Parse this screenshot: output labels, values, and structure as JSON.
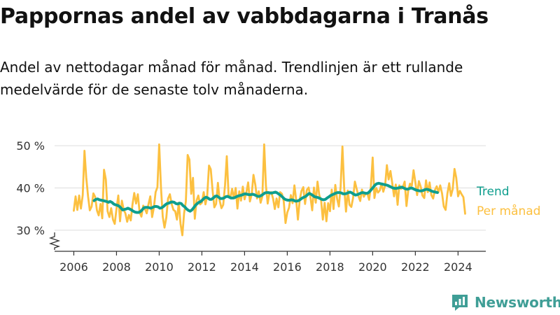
{
  "header": {
    "title": "Pappornas andel av vabbdagarna i Tranås",
    "subtitle": "Andel av nettodagar månad för månad. Trendlinjen är ett rullande medelvärde för de senaste tolv månaderna."
  },
  "brand": {
    "name": "Newsworthy",
    "icon": "newsworthy-logo-icon",
    "color": "#3f9e96"
  },
  "chart_data": {
    "type": "line",
    "x_ticks": [
      2006,
      2008,
      2010,
      2012,
      2014,
      2016,
      2018,
      2020,
      2022,
      2024
    ],
    "y_ticks": [
      30,
      40,
      50
    ],
    "y_tick_labels": [
      "30 %",
      "40 %",
      "50 %"
    ],
    "ylim": [
      25,
      53
    ],
    "xlim": [
      2005.1,
      2025.3
    ],
    "axis_break": true,
    "grid": "horizontal",
    "legend_placement": "right-of-line-ends",
    "monthly_start": 2006.0,
    "series": [
      {
        "name": "Trend",
        "color": "#0f9e8e",
        "start": 2006.95,
        "values": [
          37.0,
          37.3,
          37.4,
          37.2,
          37.1,
          37.0,
          36.9,
          36.8,
          36.6,
          36.8,
          36.6,
          36.2,
          36.0,
          35.9,
          35.7,
          35.3,
          34.8,
          34.9,
          35.0,
          35.2,
          35.0,
          34.8,
          34.5,
          34.3,
          34.2,
          34.2,
          34.4,
          34.8,
          35.3,
          35.4,
          35.4,
          35.3,
          35.2,
          35.4,
          35.6,
          35.6,
          35.5,
          35.2,
          35.3,
          35.6,
          36.0,
          36.3,
          36.4,
          36.6,
          36.7,
          36.6,
          36.3,
          36.2,
          36.4,
          36.3,
          35.8,
          35.5,
          35.0,
          34.7,
          34.5,
          34.8,
          35.3,
          35.9,
          36.3,
          36.6,
          36.8,
          37.2,
          37.6,
          37.8,
          37.6,
          37.3,
          37.3,
          37.6,
          38.0,
          38.1,
          37.8,
          37.5,
          37.5,
          37.6,
          37.9,
          38.0,
          37.8,
          37.6,
          37.6,
          37.7,
          37.9,
          38.1,
          38.2,
          38.3,
          38.5,
          38.6,
          38.5,
          38.4,
          38.4,
          38.5,
          38.4,
          38.2,
          38.0,
          38.0,
          38.2,
          38.5,
          38.8,
          38.9,
          38.9,
          38.8,
          38.8,
          38.9,
          39.0,
          38.8,
          38.5,
          38.2,
          37.8,
          37.4,
          37.2,
          37.1,
          37.1,
          37.2,
          37.1,
          36.9,
          36.9,
          37.0,
          37.3,
          37.6,
          37.8,
          38.0,
          38.4,
          38.7,
          38.5,
          38.2,
          37.9,
          37.8,
          37.7,
          37.5,
          37.3,
          37.2,
          37.3,
          37.6,
          37.9,
          38.2,
          38.4,
          38.6,
          38.8,
          38.9,
          38.9,
          38.8,
          38.6,
          38.6,
          38.7,
          38.9,
          39.0,
          38.8,
          38.5,
          38.3,
          38.4,
          38.6,
          38.8,
          38.9,
          38.8,
          38.7,
          38.8,
          39.2,
          39.7,
          40.2,
          40.7,
          41.0,
          41.1,
          41.0,
          40.9,
          40.8,
          40.7,
          40.6,
          40.4,
          40.2,
          40.0,
          39.9,
          39.9,
          40.0,
          40.1,
          40.2,
          40.0,
          39.8,
          39.7,
          39.8,
          40.0,
          39.9,
          39.7,
          39.5,
          39.4,
          39.3,
          39.3,
          39.4,
          39.6,
          39.7,
          39.6,
          39.4,
          39.2,
          39.1,
          39.0,
          38.9
        ]
      },
      {
        "name": "Per månad",
        "color": "#fcc040",
        "start": 2006.0,
        "values": [
          34.6,
          38.0,
          34.8,
          38.2,
          35.1,
          38.3,
          48.8,
          42.5,
          38.0,
          34.7,
          35.6,
          38.7,
          37.9,
          34.7,
          33.5,
          36.2,
          32.8,
          44.3,
          42.0,
          34.5,
          33.1,
          35.2,
          32.5,
          31.5,
          35.0,
          38.2,
          32.1,
          37.0,
          34.9,
          34.0,
          32.0,
          33.6,
          32.3,
          36.1,
          38.8,
          36.3,
          38.5,
          34.2,
          33.2,
          35.8,
          35.0,
          34.0,
          36.2,
          38.0,
          33.1,
          35.3,
          39.0,
          40.2,
          50.3,
          40.0,
          33.2,
          30.6,
          33.0,
          37.5,
          38.5,
          36.2,
          34.8,
          34.5,
          32.5,
          36.5,
          31.5,
          28.8,
          34.0,
          36.8,
          47.8,
          46.7,
          38.6,
          42.4,
          32.7,
          37.0,
          38.2,
          36.1,
          36.5,
          39.0,
          36.1,
          38.1,
          45.3,
          44.4,
          39.4,
          35.4,
          36.2,
          41.2,
          37.0,
          35.2,
          36.0,
          40.7,
          47.5,
          38.4,
          37.6,
          39.8,
          37.5,
          40.0,
          35.1,
          39.2,
          37.0,
          40.3,
          37.3,
          38.9,
          41.3,
          36.8,
          38.5,
          43.1,
          40.8,
          37.5,
          39.2,
          36.5,
          38.0,
          50.3,
          40.5,
          36.3,
          38.9,
          39.0,
          37.5,
          35.0,
          37.5,
          35.4,
          39.0,
          38.6,
          36.9,
          31.7,
          34.2,
          35.3,
          38.3,
          36.4,
          40.6,
          37.2,
          32.5,
          37.2,
          39.3,
          40.2,
          36.2,
          39.5,
          40.1,
          37.9,
          34.7,
          40.1,
          36.5,
          41.5,
          38.3,
          37.1,
          32.5,
          36.5,
          32.1,
          36.4,
          34.5,
          39.6,
          35.0,
          40.7,
          37.4,
          35.6,
          40.3,
          49.8,
          40.0,
          34.4,
          39.4,
          36.0,
          35.5,
          37.6,
          41.5,
          39.8,
          38.1,
          36.9,
          39.6,
          37.9,
          38.6,
          38.7,
          37.2,
          40.3,
          47.2,
          37.6,
          40.0,
          38.9,
          39.4,
          41.0,
          39.1,
          40.6,
          45.4,
          42.0,
          44.0,
          41.2,
          38.0,
          40.8,
          36.0,
          40.6,
          39.8,
          40.2,
          41.5,
          35.7,
          39.4,
          41.0,
          40.5,
          44.2,
          41.3,
          38.3,
          41.6,
          40.3,
          38.2,
          37.6,
          41.8,
          39.0,
          41.3,
          38.3,
          37.5,
          39.5,
          40.4,
          39.0,
          40.6,
          38.7,
          35.6,
          34.8,
          38.6,
          41.1,
          38.1,
          39.7,
          44.5,
          42.4,
          38.0,
          39.3,
          38.5,
          37.8,
          33.9
        ]
      }
    ]
  }
}
